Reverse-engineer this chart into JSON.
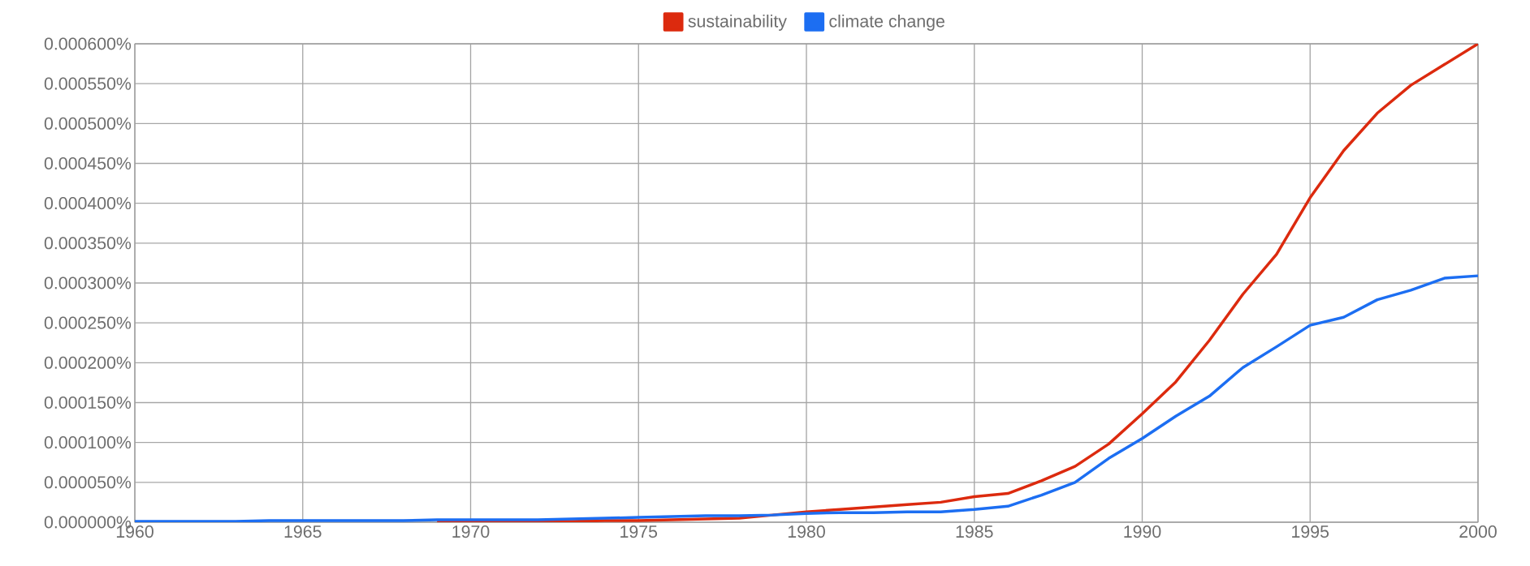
{
  "chart_data": {
    "type": "line",
    "x": [
      1960,
      1961,
      1962,
      1963,
      1964,
      1965,
      1966,
      1967,
      1968,
      1969,
      1970,
      1971,
      1972,
      1973,
      1974,
      1975,
      1976,
      1977,
      1978,
      1979,
      1980,
      1981,
      1982,
      1983,
      1984,
      1985,
      1986,
      1987,
      1988,
      1989,
      1990,
      1991,
      1992,
      1993,
      1994,
      1995,
      1996,
      1997,
      1998,
      1999,
      2000
    ],
    "series": [
      {
        "name": "sustainability",
        "color": "#dc2a0e",
        "values": [
          null,
          null,
          null,
          null,
          null,
          null,
          null,
          null,
          null,
          1e-06,
          1e-06,
          1e-06,
          1e-06,
          1e-06,
          2e-06,
          2e-06,
          3e-06,
          4e-06,
          5e-06,
          9e-06,
          1.3e-05,
          1.6e-05,
          1.9e-05,
          2.2e-05,
          2.5e-05,
          3.2e-05,
          3.6e-05,
          5.2e-05,
          7e-05,
          9.8e-05,
          0.000136,
          0.000176,
          0.000228,
          0.000286,
          0.000336,
          0.000407,
          0.000466,
          0.000513,
          0.000548,
          0.000574,
          0.0006
        ]
      },
      {
        "name": "climate change",
        "color": "#1c6ef2",
        "values": [
          1e-06,
          1e-06,
          1e-06,
          1e-06,
          2e-06,
          2e-06,
          2e-06,
          2e-06,
          2e-06,
          3e-06,
          3e-06,
          3e-06,
          3e-06,
          4e-06,
          5e-06,
          6e-06,
          7e-06,
          8e-06,
          8e-06,
          9e-06,
          1.1e-05,
          1.2e-05,
          1.2e-05,
          1.3e-05,
          1.3e-05,
          1.6e-05,
          2e-05,
          3.4e-05,
          5e-05,
          8e-05,
          0.000105,
          0.000133,
          0.000158,
          0.000194,
          0.00022,
          0.000247,
          0.000257,
          0.000279,
          0.000291,
          0.000306,
          0.000309
        ]
      }
    ],
    "xlim": [
      1960,
      2000
    ],
    "xticks": [
      1960,
      1965,
      1970,
      1975,
      1980,
      1985,
      1990,
      1995,
      2000
    ],
    "ylim": [
      0,
      0.0006
    ],
    "yticks": [
      {
        "value": 0,
        "label": "0.000000%"
      },
      {
        "value": 5e-05,
        "label": "0.000050%"
      },
      {
        "value": 0.0001,
        "label": "0.000100%"
      },
      {
        "value": 0.00015,
        "label": "0.000150%"
      },
      {
        "value": 0.0002,
        "label": "0.000200%"
      },
      {
        "value": 0.00025,
        "label": "0.000250%"
      },
      {
        "value": 0.0003,
        "label": "0.000300%"
      },
      {
        "value": 0.00035,
        "label": "0.000350%"
      },
      {
        "value": 0.0004,
        "label": "0.000400%"
      },
      {
        "value": 0.00045,
        "label": "0.000450%"
      },
      {
        "value": 0.0005,
        "label": "0.000500%"
      },
      {
        "value": 0.00055,
        "label": "0.000550%"
      },
      {
        "value": 0.0006,
        "label": "0.000600%"
      }
    ],
    "grid": true,
    "legend": "top"
  }
}
